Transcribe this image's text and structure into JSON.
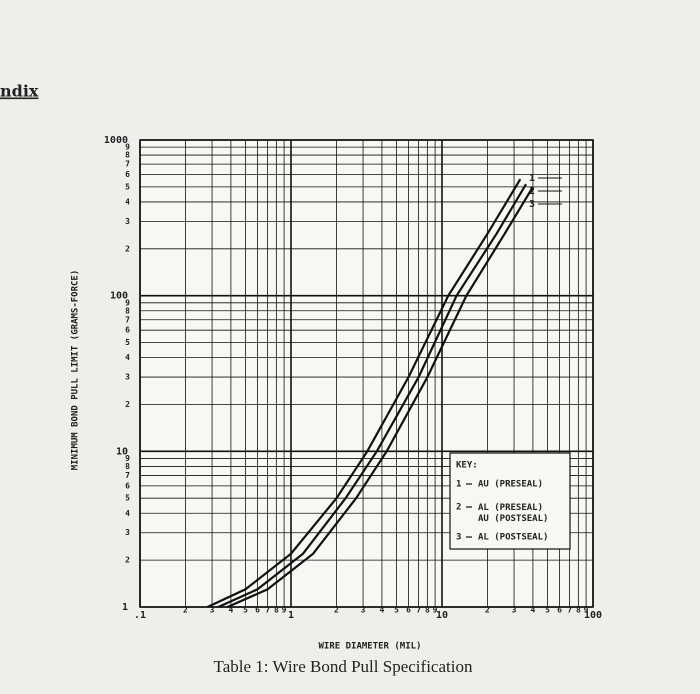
{
  "page_heading": "ndix",
  "caption": "Table 1: Wire Bond Pull Specification",
  "chart_data": {
    "type": "line",
    "xlabel": "WIRE DIAMETER (MIL)",
    "ylabel": "MINIMUM BOND PULL LIMIT (GRAMS-FORCE)",
    "xscale": "log",
    "yscale": "log",
    "grid": true,
    "xlim": [
      0.1,
      100
    ],
    "ylim": [
      1,
      1000
    ],
    "xticks": [
      {
        "value": 0.1,
        "label": ".1"
      },
      {
        "value": 0.2,
        "label": "2"
      },
      {
        "value": 0.3,
        "label": "3"
      },
      {
        "value": 0.4,
        "label": "4"
      },
      {
        "value": 0.5,
        "label": "5"
      },
      {
        "value": 0.6,
        "label": "6"
      },
      {
        "value": 0.7,
        "label": "7"
      },
      {
        "value": 0.8,
        "label": "8"
      },
      {
        "value": 0.9,
        "label": "9"
      },
      1,
      2,
      3,
      4,
      5,
      6,
      7,
      8,
      9,
      10,
      {
        "value": 20,
        "label": "2"
      },
      {
        "value": 30,
        "label": "3"
      },
      {
        "value": 40,
        "label": "4"
      },
      {
        "value": 50,
        "label": "5"
      },
      {
        "value": 60,
        "label": "6"
      },
      {
        "value": 70,
        "label": "7"
      },
      {
        "value": 80,
        "label": "8"
      },
      {
        "value": 90,
        "label": "9"
      },
      100
    ],
    "yticks": [
      1,
      2,
      3,
      4,
      5,
      6,
      7,
      8,
      9,
      10,
      {
        "value": 20,
        "label": "2"
      },
      {
        "value": 30,
        "label": "3"
      },
      {
        "value": 40,
        "label": "4"
      },
      {
        "value": 50,
        "label": "5"
      },
      {
        "value": 60,
        "label": "6"
      },
      {
        "value": 70,
        "label": "7"
      },
      {
        "value": 80,
        "label": "8"
      },
      {
        "value": 90,
        "label": "9"
      },
      100,
      {
        "value": 200,
        "label": "2"
      },
      {
        "value": 300,
        "label": "3"
      },
      {
        "value": 400,
        "label": "4"
      },
      {
        "value": 500,
        "label": "5"
      },
      {
        "value": 600,
        "label": "6"
      },
      {
        "value": 700,
        "label": "7"
      },
      {
        "value": 800,
        "label": "8"
      },
      {
        "value": 900,
        "label": "9"
      },
      1000
    ],
    "legend_title": "KEY:",
    "series": [
      {
        "label": "1",
        "name": "AU (PRESEAL)",
        "color": "#111111",
        "x": [
          0.28,
          0.5,
          1,
          2,
          3.2,
          6,
          11,
          20,
          33
        ],
        "values": [
          1,
          1.3,
          2.2,
          5,
          10,
          30,
          100,
          250,
          560
        ]
      },
      {
        "label": "2",
        "name": "AL (PRESEAL) AU (POSTSEAL)",
        "color": "#111111",
        "x": [
          0.33,
          0.6,
          1.2,
          2.3,
          3.7,
          7,
          12.5,
          23,
          36
        ],
        "values": [
          1,
          1.3,
          2.2,
          5,
          10,
          30,
          100,
          250,
          520
        ]
      },
      {
        "label": "3",
        "name": "AL (POSTSEAL)",
        "color": "#111111",
        "x": [
          0.38,
          0.7,
          1.4,
          2.7,
          4.3,
          8,
          14.5,
          26,
          40
        ],
        "values": [
          1,
          1.3,
          2.2,
          5,
          10,
          30,
          100,
          250,
          500
        ]
      }
    ]
  }
}
